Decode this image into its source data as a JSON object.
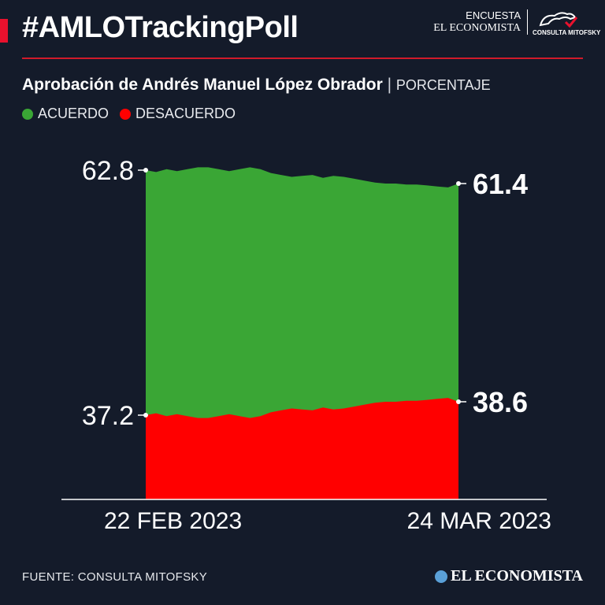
{
  "header": {
    "hashtag": "#AMLOTrackingPoll",
    "encuesta_line1": "ENCUESTA",
    "encuesta_line2": "EL ECONOMISTA",
    "partner_label": "CONSULTA MITOFSKY"
  },
  "subtitle": {
    "title": "Aprobación de Andrés Manuel López Obrador",
    "separator": "|",
    "unit": "PORCENTAJE"
  },
  "legend": [
    {
      "label": "ACUERDO",
      "color": "#3aa635"
    },
    {
      "label": "DESACUERDO",
      "color": "#ff0000"
    }
  ],
  "footer": {
    "source": "FUENTE: CONSULTA MITOFSKY",
    "brand": "EL ECONOMISTA"
  },
  "colors": {
    "background": "#141b2a",
    "accent": "#e8112d",
    "acuerdo": "#3aa635",
    "desacuerdo": "#ff0000"
  },
  "chart_data": {
    "type": "area",
    "x": [
      "22 FEB 2023",
      "23 FEB 2023",
      "24 FEB 2023",
      "25 FEB 2023",
      "26 FEB 2023",
      "27 FEB 2023",
      "28 FEB 2023",
      "1 MAR 2023",
      "2 MAR 2023",
      "3 MAR 2023",
      "4 MAR 2023",
      "5 MAR 2023",
      "6 MAR 2023",
      "7 MAR 2023",
      "8 MAR 2023",
      "9 MAR 2023",
      "10 MAR 2023",
      "11 MAR 2023",
      "12 MAR 2023",
      "13 MAR 2023",
      "14 MAR 2023",
      "15 MAR 2023",
      "16 MAR 2023",
      "17 MAR 2023",
      "18 MAR 2023",
      "19 MAR 2023",
      "20 MAR 2023",
      "21 MAR 2023",
      "22 MAR 2023",
      "23 MAR 2023",
      "24 MAR 2023"
    ],
    "x_tick_labels": [
      "22  FEB 2023",
      "24 MAR 2023"
    ],
    "series": [
      {
        "name": "ACUERDO",
        "color": "#3aa635",
        "values": [
          62.8,
          62.6,
          62.9,
          62.7,
          62.9,
          63.1,
          63.1,
          62.9,
          62.7,
          62.9,
          63.1,
          62.9,
          62.5,
          62.3,
          62.1,
          62.2,
          62.3,
          62.0,
          62.2,
          62.1,
          61.9,
          61.7,
          61.5,
          61.4,
          61.4,
          61.3,
          61.3,
          61.2,
          61.1,
          61.0,
          61.4
        ]
      },
      {
        "name": "DESACUERDO",
        "color": "#ff0000",
        "values": [
          37.2,
          37.4,
          37.1,
          37.3,
          37.1,
          36.9,
          36.9,
          37.1,
          37.3,
          37.1,
          36.9,
          37.1,
          37.5,
          37.7,
          37.9,
          37.8,
          37.7,
          38.0,
          37.8,
          37.9,
          38.1,
          38.3,
          38.5,
          38.6,
          38.6,
          38.7,
          38.7,
          38.8,
          38.9,
          39.0,
          38.6
        ]
      }
    ],
    "start_labels": {
      "acuerdo": "62.8",
      "desacuerdo": "37.2"
    },
    "end_labels": {
      "acuerdo": "61.4",
      "desacuerdo": "38.6"
    },
    "xlabel": "",
    "ylabel": "",
    "grid": false
  }
}
